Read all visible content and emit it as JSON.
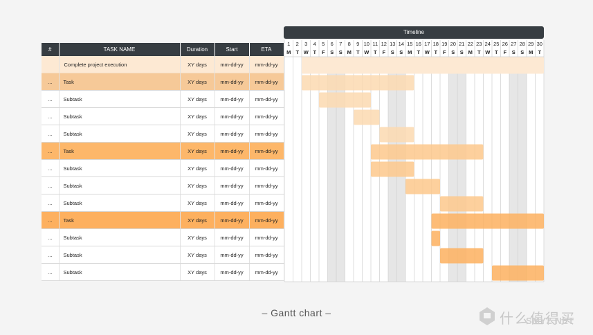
{
  "table": {
    "headers": {
      "num": "#",
      "name": "TASK NAME",
      "duration": "Duration",
      "start": "Start",
      "eta": "ETA"
    },
    "rows": [
      {
        "num": "",
        "name": "Complete project execution",
        "duration": "XY days",
        "start": "mm-dd-yy",
        "eta": "mm-dd-yy",
        "level": 0
      },
      {
        "num": "...",
        "name": "Task",
        "duration": "XY days",
        "start": "mm-dd-yy",
        "eta": "mm-dd-yy",
        "level": 1
      },
      {
        "num": "...",
        "name": "Subtask",
        "duration": "XY days",
        "start": "mm-dd-yy",
        "eta": "mm-dd-yy",
        "level": 2
      },
      {
        "num": "...",
        "name": "Subtask",
        "duration": "XY days",
        "start": "mm-dd-yy",
        "eta": "mm-dd-yy",
        "level": 2
      },
      {
        "num": "...",
        "name": "Subtask",
        "duration": "XY days",
        "start": "mm-dd-yy",
        "eta": "mm-dd-yy",
        "level": 2
      },
      {
        "num": "...",
        "name": "Task",
        "duration": "XY days",
        "start": "mm-dd-yy",
        "eta": "mm-dd-yy",
        "level": 1
      },
      {
        "num": "...",
        "name": "Subtask",
        "duration": "XY days",
        "start": "mm-dd-yy",
        "eta": "mm-dd-yy",
        "level": 2
      },
      {
        "num": "...",
        "name": "Subtask",
        "duration": "XY days",
        "start": "mm-dd-yy",
        "eta": "mm-dd-yy",
        "level": 2
      },
      {
        "num": "...",
        "name": "Subtask",
        "duration": "XY days",
        "start": "mm-dd-yy",
        "eta": "mm-dd-yy",
        "level": 2
      },
      {
        "num": "...",
        "name": "Task",
        "duration": "XY days",
        "start": "mm-dd-yy",
        "eta": "mm-dd-yy",
        "level": 1
      },
      {
        "num": "...",
        "name": "Subtask",
        "duration": "XY days",
        "start": "mm-dd-yy",
        "eta": "mm-dd-yy",
        "level": 2
      },
      {
        "num": "...",
        "name": "Subtask",
        "duration": "XY days",
        "start": "mm-dd-yy",
        "eta": "mm-dd-yy",
        "level": 2
      },
      {
        "num": "...",
        "name": "Subtask",
        "duration": "XY days",
        "start": "mm-dd-yy",
        "eta": "mm-dd-yy",
        "level": 2
      }
    ]
  },
  "chart_data": {
    "type": "bar",
    "subtype": "gantt",
    "title": "Timeline",
    "days": [
      "1",
      "2",
      "3",
      "4",
      "5",
      "6",
      "7",
      "8",
      "9",
      "10",
      "11",
      "12",
      "13",
      "14",
      "15",
      "16",
      "17",
      "18",
      "19",
      "20",
      "21",
      "22",
      "23",
      "24",
      "25",
      "26",
      "27",
      "28",
      "29",
      "30"
    ],
    "weekdays": [
      "M",
      "T",
      "W",
      "T",
      "F",
      "S",
      "S",
      "M",
      "T",
      "W",
      "T",
      "F",
      "S",
      "S",
      "M",
      "T",
      "W",
      "T",
      "F",
      "S",
      "S",
      "M",
      "T",
      "W",
      "T",
      "F",
      "S",
      "S",
      "M",
      "T"
    ],
    "weekend_days": [
      6,
      7,
      13,
      14,
      20,
      21,
      27,
      28
    ],
    "bars": [
      {
        "row": 0,
        "start": 3,
        "end": 30,
        "color": "#fde9d3"
      },
      {
        "row": 1,
        "start": 3,
        "end": 15,
        "color": "#fcd9b0"
      },
      {
        "row": 2,
        "start": 5,
        "end": 10,
        "color": "#fcd9b0"
      },
      {
        "row": 3,
        "start": 9,
        "end": 11,
        "color": "#fcd9b0"
      },
      {
        "row": 4,
        "start": 12,
        "end": 15,
        "color": "#fcd9b0"
      },
      {
        "row": 5,
        "start": 11,
        "end": 23,
        "color": "#fdc88c"
      },
      {
        "row": 6,
        "start": 11,
        "end": 15,
        "color": "#fdc88c"
      },
      {
        "row": 7,
        "start": 15,
        "end": 18,
        "color": "#fdc88c"
      },
      {
        "row": 8,
        "start": 19,
        "end": 23,
        "color": "#fdc88c"
      },
      {
        "row": 9,
        "start": 18,
        "end": 30,
        "color": "#fdb05f"
      },
      {
        "row": 10,
        "start": 18,
        "end": 18,
        "color": "#fdb05f"
      },
      {
        "row": 11,
        "start": 19,
        "end": 23,
        "color": "#fdb05f"
      },
      {
        "row": 12,
        "start": 25,
        "end": 30,
        "color": "#fdb05f"
      }
    ]
  },
  "caption": "– Gantt chart –",
  "watermark": {
    "text": "什么值得买",
    "sub": "SMYZ.NET"
  }
}
